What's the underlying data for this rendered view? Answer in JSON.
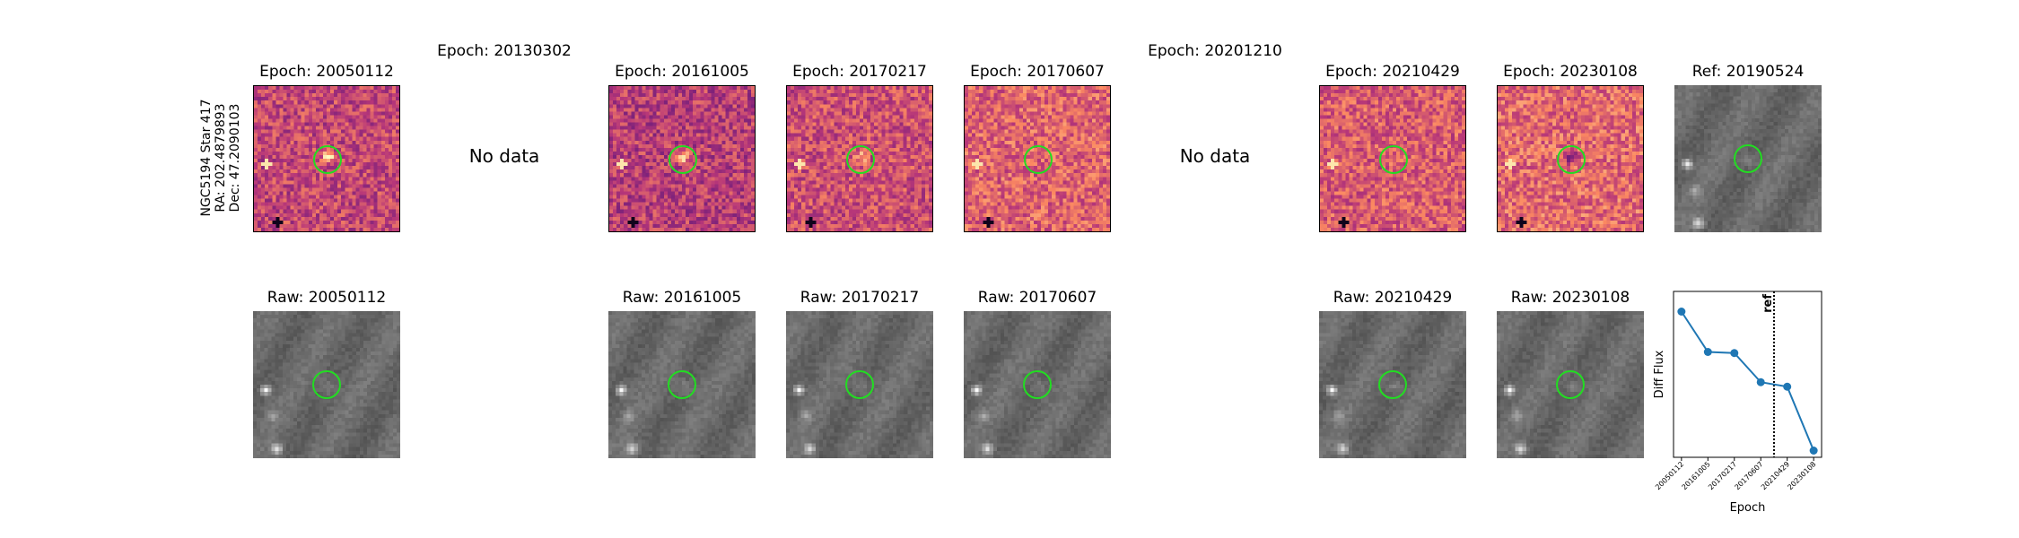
{
  "star": {
    "name": "NGC5194 Star 417",
    "ra": "RA: 202.4879893",
    "dec": "Dec: 47.2090103"
  },
  "no_data_label": "No data",
  "epochs": [
    {
      "id": "20050112",
      "diff_title": "Epoch: 20050112",
      "raw_title": "Raw: 20050112",
      "has_data": true
    },
    {
      "id": "20130302",
      "diff_title": "Epoch: 20130302",
      "raw_title": "",
      "has_data": false
    },
    {
      "id": "20161005",
      "diff_title": "Epoch: 20161005",
      "raw_title": "Raw: 20161005",
      "has_data": true
    },
    {
      "id": "20170217",
      "diff_title": "Epoch: 20170217",
      "raw_title": "Raw: 20170217",
      "has_data": true
    },
    {
      "id": "20170607",
      "diff_title": "Epoch: 20170607",
      "raw_title": "Raw: 20170607",
      "has_data": true
    },
    {
      "id": "20201210",
      "diff_title": "Epoch: 20201210",
      "raw_title": "",
      "has_data": false
    },
    {
      "id": "20210429",
      "diff_title": "Epoch: 20210429",
      "raw_title": "Raw: 20210429",
      "has_data": true
    },
    {
      "id": "20230108",
      "diff_title": "Epoch: 20230108",
      "raw_title": "Raw: 20230108",
      "has_data": true
    }
  ],
  "reference": {
    "title": "Ref: 20190524"
  },
  "colors": {
    "circle": "#22dd22",
    "series": "#1f77b4"
  },
  "chart_data": {
    "type": "line",
    "x": [
      "20050112",
      "20161005",
      "20170217",
      "20170607",
      "20210429",
      "20230108"
    ],
    "series": [
      {
        "values": [
          0.88,
          0.52,
          0.51,
          0.25,
          0.21,
          -0.36
        ]
      }
    ],
    "xlabel": "Epoch",
    "ylabel": "Diff Flux",
    "ylim": [
      -0.42,
      1.06
    ],
    "reference_line": {
      "label": "ref",
      "position": "between 20170607 and 20210429"
    },
    "grid": false,
    "y_ticks_shown": false
  }
}
